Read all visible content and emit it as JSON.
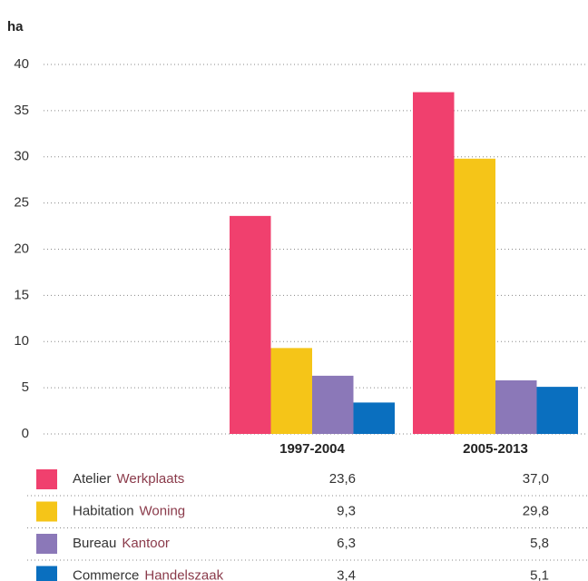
{
  "chart_data": {
    "type": "bar",
    "y_label": "ha",
    "categories": [
      "1997-2004",
      "2005-2013"
    ],
    "series": [
      {
        "name": "Atelier",
        "name_alt": "Werkplaats",
        "color": "#f0406e",
        "values": [
          23.6,
          37.0
        ],
        "value_labels": [
          "23,6",
          "37,0"
        ]
      },
      {
        "name": "Habitation",
        "name_alt": "Woning",
        "color": "#f5c518",
        "values": [
          9.3,
          29.8
        ],
        "value_labels": [
          "9,3",
          "29,8"
        ]
      },
      {
        "name": "Bureau",
        "name_alt": "Kantoor",
        "color": "#8b78b8",
        "values": [
          6.3,
          5.8
        ],
        "value_labels": [
          "6,3",
          "5,8"
        ]
      },
      {
        "name": "Commerce",
        "name_alt": "Handelszaak",
        "color": "#0a6fbf",
        "values": [
          3.4,
          5.1
        ],
        "value_labels": [
          "3,4",
          "5,1"
        ]
      }
    ],
    "ylim": [
      0,
      40
    ],
    "yticks": [
      0,
      5,
      10,
      15,
      20,
      25,
      30,
      35,
      40
    ],
    "grid": true
  }
}
